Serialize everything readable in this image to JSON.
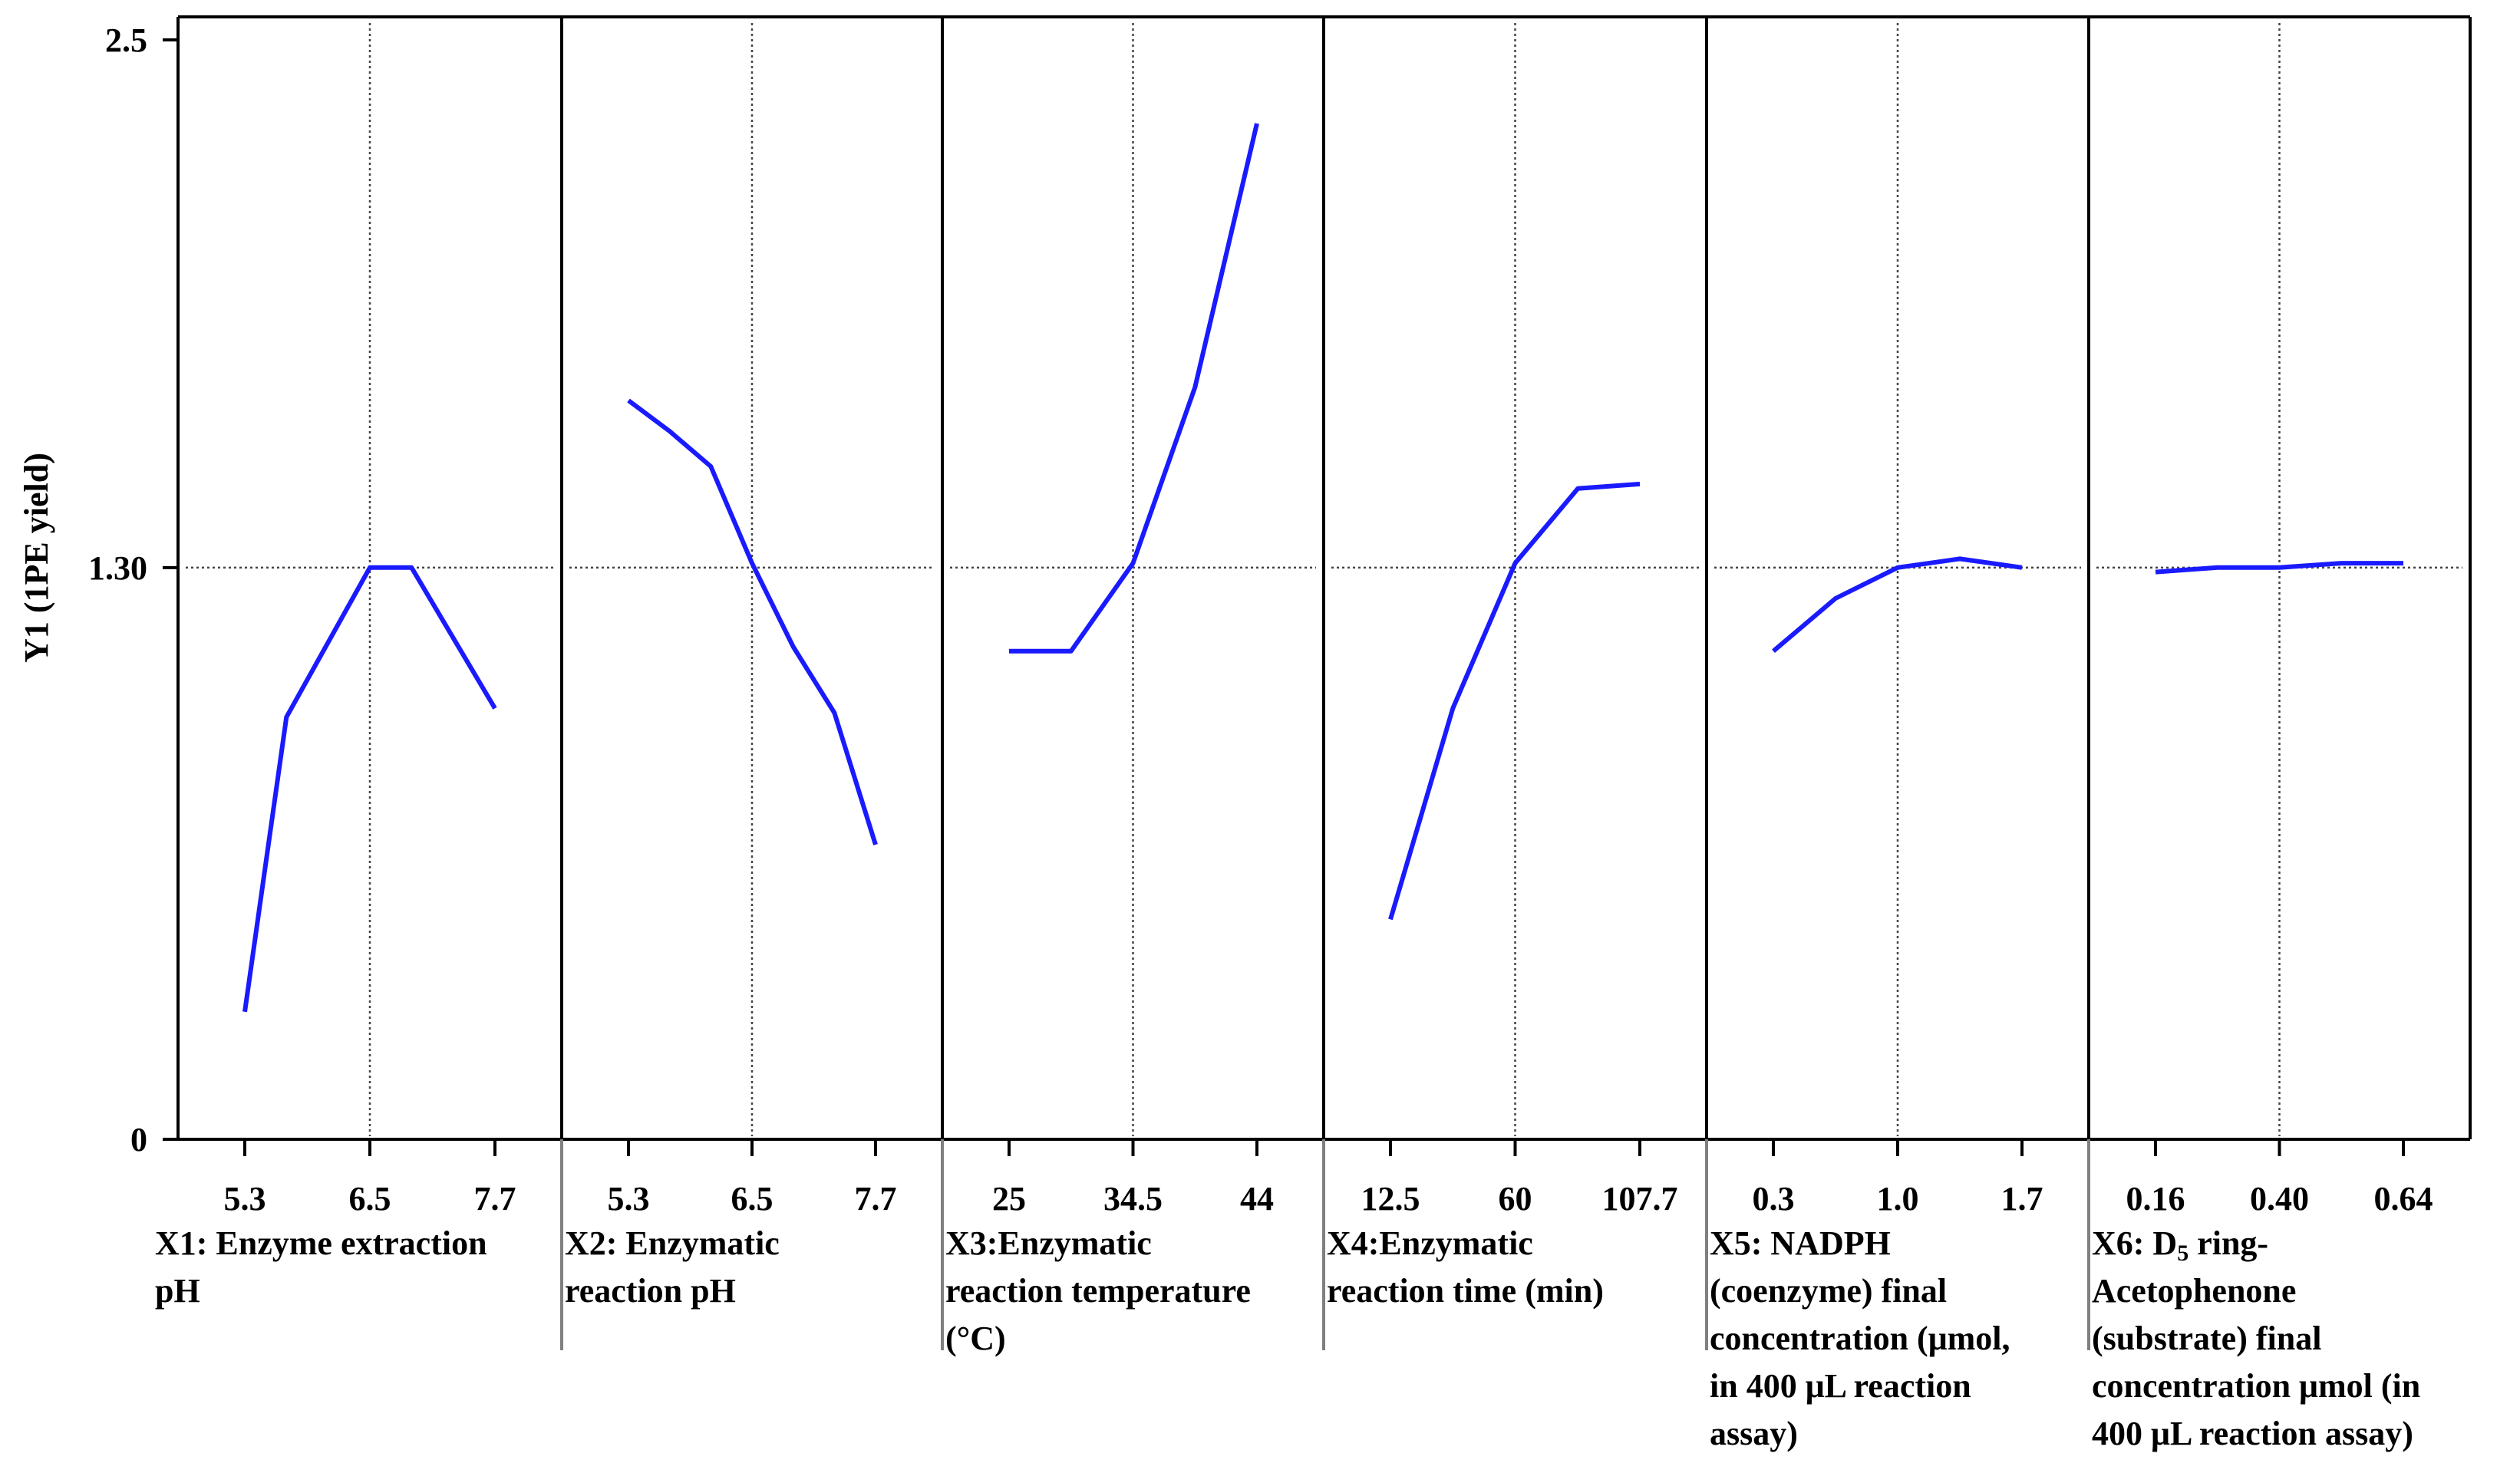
{
  "chart_data": {
    "type": "line",
    "title": "",
    "ylabel": "Y1 (1PE yield)",
    "ylim": [
      0,
      2.5
    ],
    "y_ticks": [
      "0",
      "1.30",
      "2.5"
    ],
    "reference_y": 1.3,
    "line_color": "#1a1aff",
    "grid": false,
    "panels": [
      {
        "id": "x1",
        "xlabel_lines": [
          "X1: Enzyme extraction",
          "pH"
        ],
        "x_ticks": [
          5.3,
          6.5,
          7.7
        ],
        "x_tick_labels": [
          "5.3",
          "6.5",
          "7.7"
        ],
        "reference_x": 6.5,
        "x": [
          5.3,
          5.7,
          6.5,
          6.9,
          7.7
        ],
        "y": [
          0.29,
          0.96,
          1.3,
          1.3,
          0.98
        ]
      },
      {
        "id": "x2",
        "xlabel_lines": [
          "X2: Enzymatic",
          "reaction  pH"
        ],
        "x_ticks": [
          5.3,
          6.5,
          7.7
        ],
        "x_tick_labels": [
          "5.3",
          "6.5",
          "7.7"
        ],
        "reference_x": 6.5,
        "x": [
          5.3,
          5.7,
          6.1,
          6.5,
          6.9,
          7.3,
          7.7
        ],
        "y": [
          1.68,
          1.61,
          1.53,
          1.31,
          1.12,
          0.97,
          0.67
        ]
      },
      {
        "id": "x3",
        "xlabel_lines": [
          "X3:Enzymatic",
          "reaction temperature",
          "(°C)"
        ],
        "x_ticks": [
          25,
          34.5,
          44
        ],
        "x_tick_labels": [
          "25",
          "34.5",
          "44"
        ],
        "reference_x": 34.5,
        "x": [
          25,
          29.75,
          34.5,
          39.25,
          44
        ],
        "y": [
          1.11,
          1.11,
          1.31,
          1.71,
          2.31
        ]
      },
      {
        "id": "x4",
        "xlabel_lines": [
          "X4:Enzymatic",
          "reaction time (min)"
        ],
        "x_ticks": [
          12.5,
          60,
          107.7
        ],
        "x_tick_labels": [
          "12.5",
          "60",
          "107.7"
        ],
        "reference_x": 60,
        "x": [
          12.5,
          36.25,
          60,
          84,
          107.7
        ],
        "y": [
          0.5,
          0.98,
          1.31,
          1.48,
          1.49
        ]
      },
      {
        "id": "x5",
        "xlabel_lines": [
          "X5: NADPH",
          "(coenzyme) final",
          "concentration (μmol,",
          "in 400 μL reaction",
          "assay)"
        ],
        "x_ticks": [
          0.3,
          1.0,
          1.7
        ],
        "x_tick_labels": [
          "0.3",
          "1.0",
          "1.7"
        ],
        "reference_x": 1.0,
        "x": [
          0.3,
          0.65,
          1.0,
          1.35,
          1.7
        ],
        "y": [
          1.11,
          1.23,
          1.3,
          1.32,
          1.3
        ]
      },
      {
        "id": "x6",
        "xlabel_lines": [
          "X6: D5 ring-",
          "Acetophenone",
          "(substrate) final",
          "concentration  μmol (in",
          "400 μL reaction assay)"
        ],
        "x_ticks": [
          0.16,
          0.4,
          0.64
        ],
        "x_tick_labels": [
          "0.16",
          "0.40",
          "0.64"
        ],
        "reference_x": 0.4,
        "x": [
          0.16,
          0.28,
          0.4,
          0.52,
          0.64
        ],
        "y": [
          1.29,
          1.3,
          1.3,
          1.31,
          1.31
        ]
      }
    ]
  }
}
